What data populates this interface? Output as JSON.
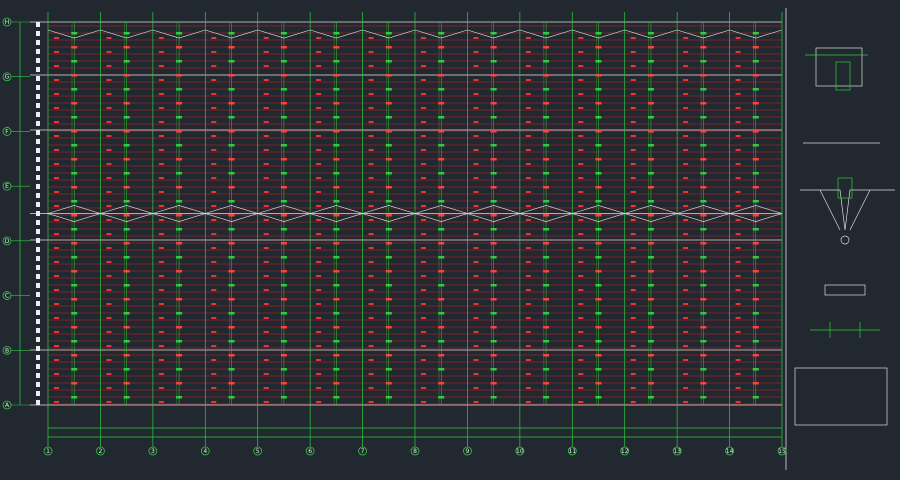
{
  "grid_axes": {
    "columns": [
      "1",
      "2",
      "3",
      "4",
      "5",
      "6",
      "7",
      "8",
      "9",
      "10",
      "11",
      "12",
      "13",
      "14",
      "15"
    ],
    "rows": [
      "A",
      "B",
      "C",
      "D",
      "E",
      "F",
      "G",
      "H"
    ]
  }
}
